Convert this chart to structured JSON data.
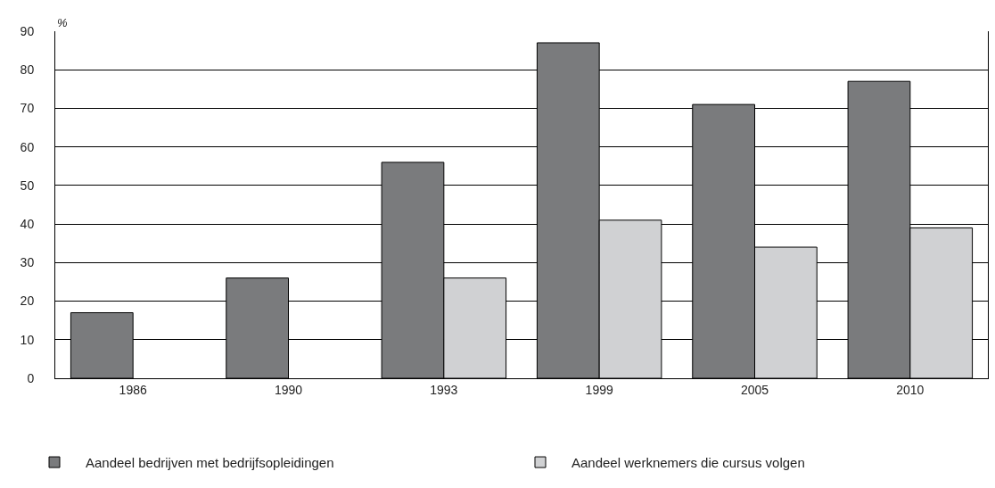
{
  "chart_data": {
    "type": "bar",
    "ylabel": "%",
    "categories": [
      "1986",
      "1990",
      "1993",
      "1999",
      "2005",
      "2010"
    ],
    "series": [
      {
        "name": "Aandeel bedrijven met bedrijfsopleidingen",
        "color": "#7a7b7d",
        "values": [
          17,
          26,
          56,
          87,
          71,
          77
        ]
      },
      {
        "name": "Aandeel werknemers die cursus volgen",
        "color": "#d0d1d3",
        "values": [
          null,
          null,
          26,
          41,
          34,
          39
        ]
      }
    ],
    "ylim": [
      0,
      90
    ],
    "yticks": [
      0,
      10,
      20,
      30,
      40,
      50,
      60,
      70,
      80,
      90
    ],
    "grid": "y",
    "legend": "bottom left"
  }
}
